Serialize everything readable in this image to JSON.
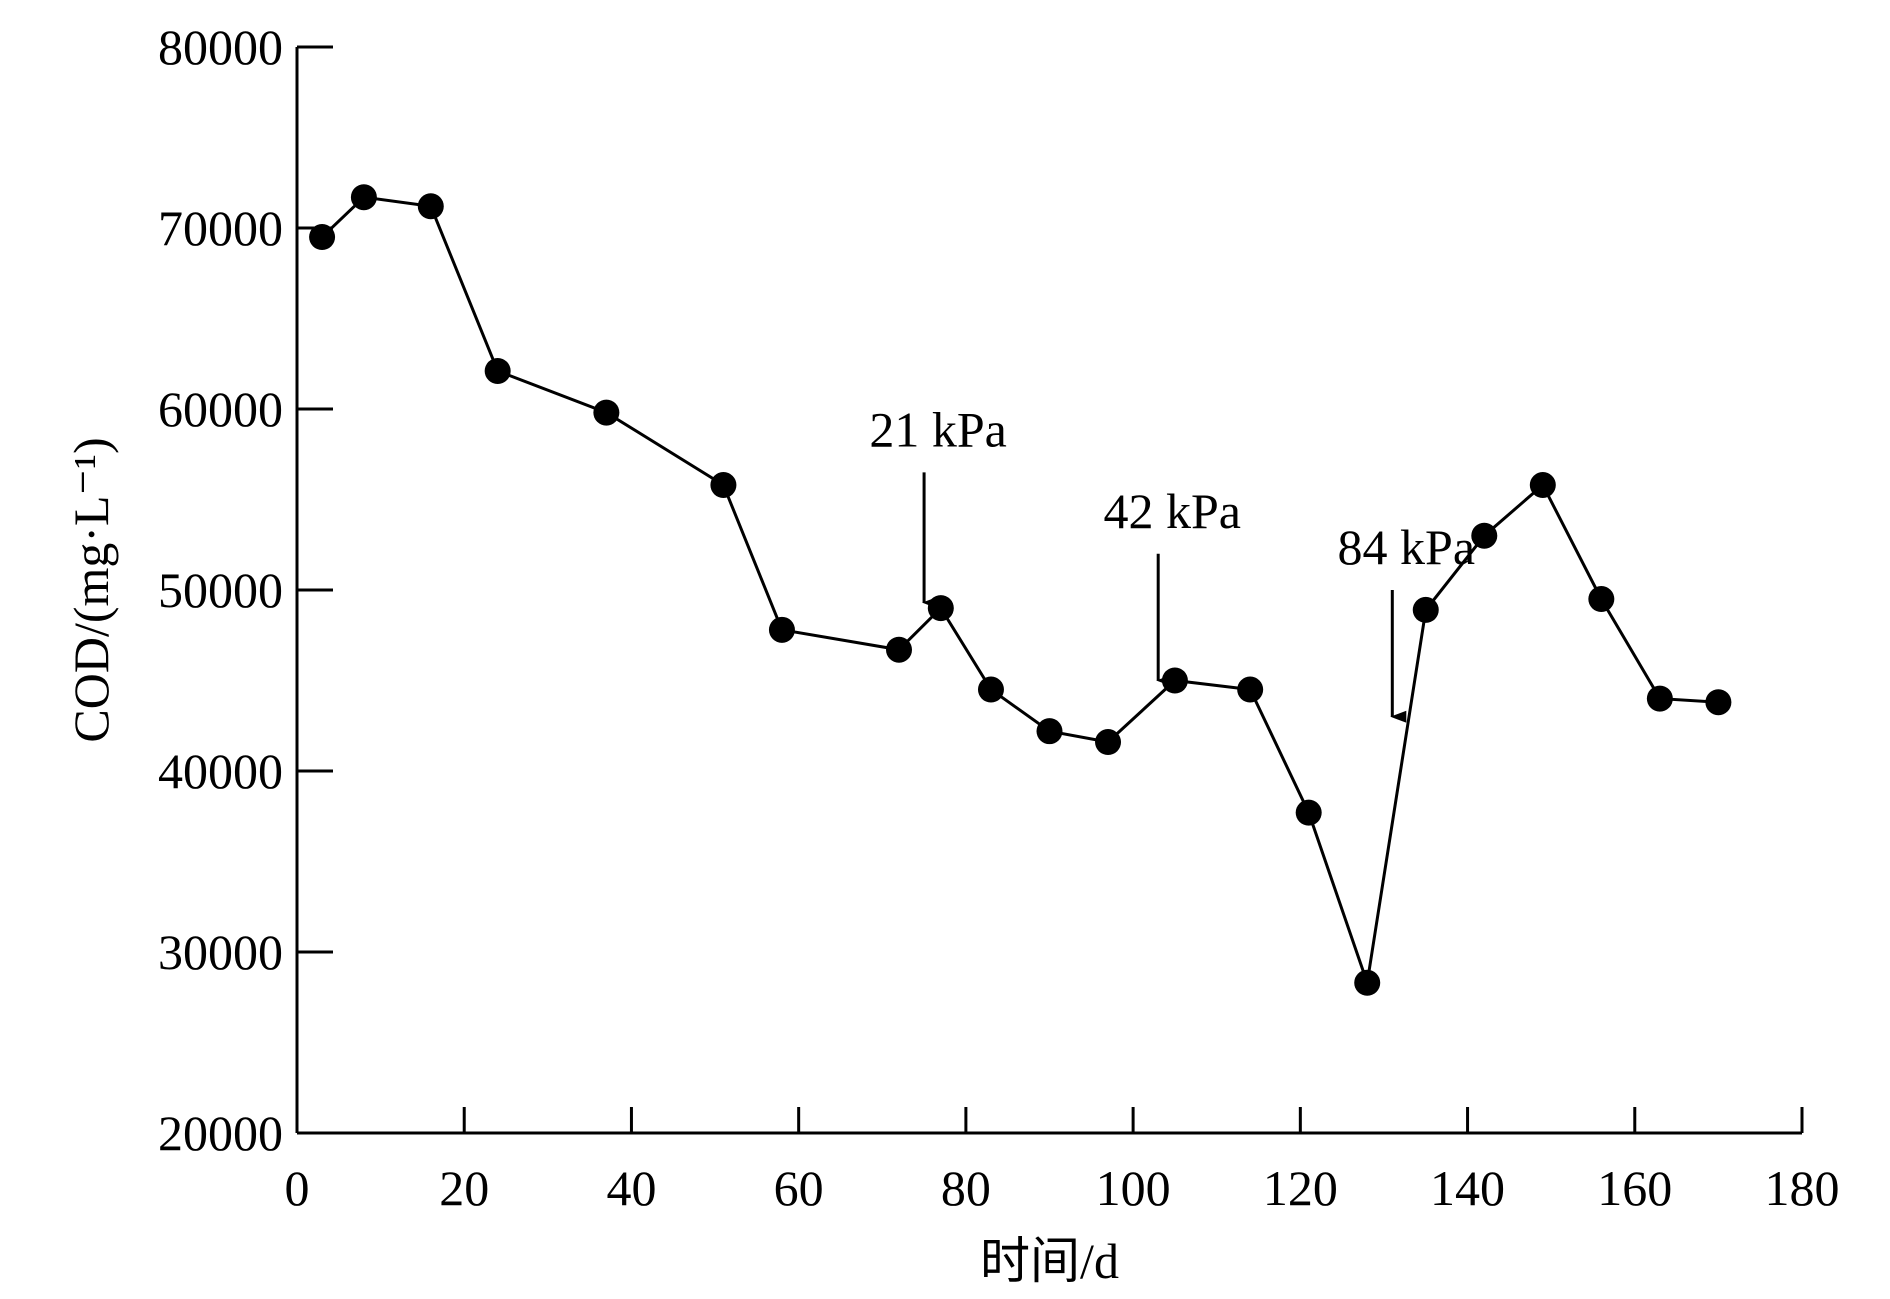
{
  "chart_data": {
    "type": "line",
    "title": "",
    "xlabel": "时间/d",
    "ylabel": "COD/(mg·L⁻¹)",
    "xlim": [
      0,
      180
    ],
    "ylim": [
      20000,
      80000
    ],
    "xticks": [
      0,
      20,
      40,
      60,
      80,
      100,
      120,
      140,
      160,
      180
    ],
    "yticks": [
      20000,
      30000,
      40000,
      50000,
      60000,
      70000,
      80000
    ],
    "grid": false,
    "legend": "none",
    "marker": "filled-circle",
    "line_color": "#000000",
    "series": [
      {
        "x": [
          3,
          8,
          16,
          24,
          37,
          51,
          58,
          72,
          77,
          83,
          90,
          97,
          105,
          114,
          121,
          128,
          135,
          142,
          149,
          156,
          163,
          170
        ],
        "y": [
          69500,
          71700,
          71200,
          62100,
          59800,
          55800,
          47800,
          46700,
          49000,
          44500,
          42200,
          41600,
          45000,
          44500,
          37700,
          28300,
          48900,
          53000,
          55800,
          49500,
          44000,
          43800
        ]
      }
    ],
    "annotations": [
      {
        "text": "21 kPa",
        "x": 75,
        "y_top": 56500,
        "y_tip": 49300
      },
      {
        "text": "42 kPa",
        "x": 103,
        "y_top": 52000,
        "y_tip": 45000
      },
      {
        "text": "84 kPa",
        "x": 131,
        "y_top": 50000,
        "y_tip": 43000
      }
    ]
  }
}
